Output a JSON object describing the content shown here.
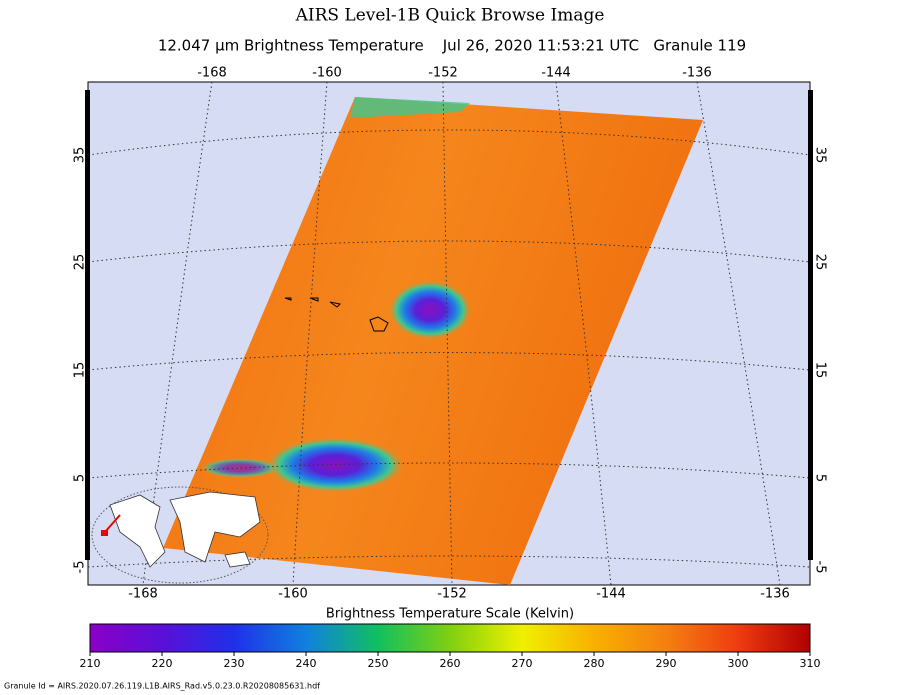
{
  "header": {
    "title": "AIRS Level-1B Quick Browse Image",
    "subtitle": "12.047 μm Brightness Temperature    Jul 26, 2020 11:53:21 UTC   Granule 119"
  },
  "map": {
    "top_longitudes": [
      -168,
      -160,
      -152,
      -144,
      -136
    ],
    "bottom_longitudes": [
      -168,
      -160,
      -152,
      -144,
      -136
    ],
    "left_latitudes": [
      35,
      25,
      15,
      5,
      -5
    ],
    "right_latitudes": [
      35,
      25,
      15,
      5,
      -5
    ]
  },
  "colorbar": {
    "title": "Brightness Temperature Scale (Kelvin)",
    "lim": [
      210,
      310
    ],
    "ticks": [
      210,
      220,
      230,
      240,
      250,
      260,
      270,
      280,
      290,
      300,
      310
    ]
  },
  "footer": {
    "granule_id": "Granule Id = AIRS.2020.07.26.119.L1B.AIRS_Rad.v5.0.23.0.R20208085631.hdf"
  }
}
